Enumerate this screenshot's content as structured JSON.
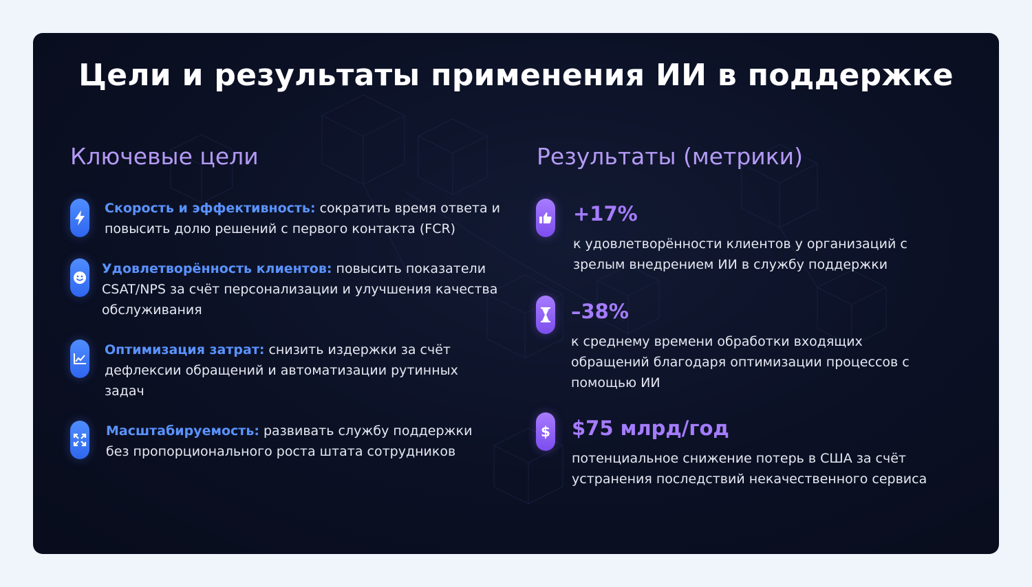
{
  "title": "Цели и результаты применения ИИ в поддержке",
  "goals": {
    "heading": "Ключевые цели",
    "items": [
      {
        "icon": "lightning-icon",
        "label": "Скорость и эффективность:",
        "text": " сократить время ответа и повысить долю решений с первого контакта (FCR)"
      },
      {
        "icon": "smiley-icon",
        "label": "Удовлетворённость клиентов:",
        "text": " повысить показатели CSAT/NPS за счёт персонализации и улучшения качества обслуживания"
      },
      {
        "icon": "chart-line-icon",
        "label": "Оптимизация затрат:",
        "text": " снизить издержки за счёт дефлексии обращений и автоматизации рутинных задач"
      },
      {
        "icon": "expand-icon",
        "label": "Масштабируемость:",
        "text": " развивать службу поддержки без пропорционального роста штата сотрудников"
      }
    ]
  },
  "results": {
    "heading": "Результаты (метрики)",
    "items": [
      {
        "icon": "thumbs-up-icon",
        "value": "+17%",
        "text": "к удовлетворённости клиентов у организаций с зрелым внедрением ИИ в службу поддержки"
      },
      {
        "icon": "hourglass-icon",
        "value": "–38%",
        "text": "к среднему времени обработки входящих обращений благодаря оптимизации процессов с помощью ИИ"
      },
      {
        "icon": "dollar-icon",
        "value": "$75 млрд/год",
        "text": "потенциальное снижение потерь в США за счёт устранения последствий некачественного сервиса"
      }
    ]
  },
  "colors": {
    "background": "#0b1024",
    "accent_blue": "#5a93ff",
    "accent_purple": "#a57cff",
    "heading": "#b49af5"
  }
}
